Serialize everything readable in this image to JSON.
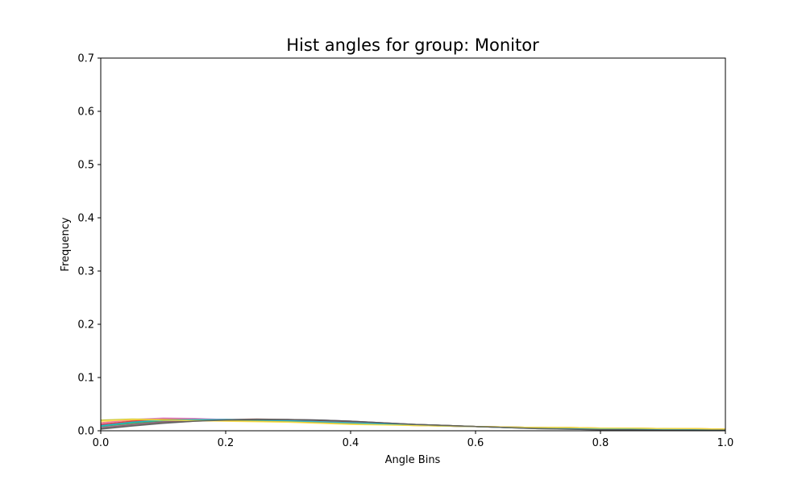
{
  "chart_data": {
    "type": "line",
    "title": "Hist angles for group: Monitor",
    "xlabel": "Angle Bins",
    "ylabel": "Frequency",
    "xlim": [
      0.0,
      1.0
    ],
    "ylim": [
      0.0,
      0.7
    ],
    "x_ticks": [
      0.0,
      0.2,
      0.4,
      0.6,
      0.8,
      1.0
    ],
    "x_tick_labels": [
      "0.0",
      "0.2",
      "0.4",
      "0.6",
      "0.8",
      "1.0"
    ],
    "y_ticks": [
      0.0,
      0.1,
      0.2,
      0.3,
      0.4,
      0.5,
      0.6,
      0.7
    ],
    "y_tick_labels": [
      "0.0",
      "0.1",
      "0.2",
      "0.3",
      "0.4",
      "0.5",
      "0.6",
      "0.7"
    ],
    "grid": false,
    "legend": false,
    "x": [
      0.0,
      0.05,
      0.1,
      0.15,
      0.2,
      0.25,
      0.3,
      0.35,
      0.4,
      0.45,
      0.5,
      0.55,
      0.6,
      0.65,
      0.7,
      0.75,
      0.8,
      0.85,
      0.9,
      0.95,
      1.0
    ],
    "series": [
      {
        "color": "#1f77b4",
        "values": [
          0.01,
          0.016,
          0.02,
          0.022,
          0.021,
          0.02,
          0.019,
          0.017,
          0.015,
          0.013,
          0.011,
          0.009,
          0.008,
          0.007,
          0.006,
          0.005,
          0.004,
          0.004,
          0.003,
          0.003,
          0.002
        ]
      },
      {
        "color": "#ff7f0e",
        "values": [
          0.015,
          0.02,
          0.021,
          0.02,
          0.019,
          0.018,
          0.017,
          0.016,
          0.014,
          0.012,
          0.01,
          0.009,
          0.008,
          0.007,
          0.006,
          0.006,
          0.005,
          0.005,
          0.004,
          0.004,
          0.003
        ]
      },
      {
        "color": "#2ca02c",
        "values": [
          0.008,
          0.014,
          0.018,
          0.02,
          0.021,
          0.02,
          0.019,
          0.018,
          0.016,
          0.014,
          0.012,
          0.01,
          0.008,
          0.007,
          0.006,
          0.005,
          0.005,
          0.004,
          0.004,
          0.003,
          0.002
        ]
      },
      {
        "color": "#d62728",
        "values": [
          0.012,
          0.018,
          0.022,
          0.022,
          0.021,
          0.021,
          0.02,
          0.018,
          0.016,
          0.013,
          0.011,
          0.009,
          0.008,
          0.006,
          0.005,
          0.004,
          0.004,
          0.003,
          0.003,
          0.002,
          0.002
        ]
      },
      {
        "color": "#9467bd",
        "values": [
          0.006,
          0.012,
          0.017,
          0.019,
          0.02,
          0.021,
          0.021,
          0.02,
          0.018,
          0.015,
          0.012,
          0.01,
          0.008,
          0.006,
          0.005,
          0.004,
          0.003,
          0.003,
          0.002,
          0.002,
          0.001
        ]
      },
      {
        "color": "#8c564b",
        "values": [
          0.005,
          0.011,
          0.016,
          0.019,
          0.021,
          0.022,
          0.021,
          0.019,
          0.017,
          0.014,
          0.012,
          0.01,
          0.008,
          0.006,
          0.005,
          0.004,
          0.003,
          0.003,
          0.002,
          0.002,
          0.001
        ]
      },
      {
        "color": "#e377c2",
        "values": [
          0.014,
          0.021,
          0.024,
          0.023,
          0.021,
          0.02,
          0.019,
          0.017,
          0.015,
          0.013,
          0.011,
          0.009,
          0.008,
          0.007,
          0.006,
          0.005,
          0.004,
          0.004,
          0.003,
          0.003,
          0.002
        ]
      },
      {
        "color": "#7f7f7f",
        "values": [
          0.004,
          0.01,
          0.015,
          0.018,
          0.02,
          0.021,
          0.021,
          0.02,
          0.018,
          0.015,
          0.012,
          0.01,
          0.008,
          0.006,
          0.004,
          0.003,
          0.002,
          0.002,
          0.001,
          0.001,
          0.001
        ]
      },
      {
        "color": "#bcbd22",
        "values": [
          0.02,
          0.022,
          0.021,
          0.02,
          0.019,
          0.018,
          0.017,
          0.015,
          0.013,
          0.012,
          0.01,
          0.009,
          0.008,
          0.007,
          0.006,
          0.006,
          0.005,
          0.005,
          0.004,
          0.004,
          0.003
        ]
      },
      {
        "color": "#17becf",
        "values": [
          0.009,
          0.016,
          0.02,
          0.021,
          0.021,
          0.02,
          0.019,
          0.017,
          0.015,
          0.013,
          0.011,
          0.009,
          0.008,
          0.006,
          0.005,
          0.004,
          0.004,
          0.003,
          0.003,
          0.002,
          0.002
        ]
      },
      {
        "color": "#ffdd44",
        "values": [
          0.018,
          0.021,
          0.02,
          0.019,
          0.018,
          0.017,
          0.016,
          0.014,
          0.012,
          0.011,
          0.01,
          0.009,
          0.008,
          0.007,
          0.006,
          0.006,
          0.005,
          0.005,
          0.004,
          0.004,
          0.003
        ]
      },
      {
        "color": "#555555",
        "values": [
          0.003,
          0.009,
          0.014,
          0.018,
          0.02,
          0.021,
          0.021,
          0.02,
          0.018,
          0.015,
          0.012,
          0.01,
          0.008,
          0.006,
          0.004,
          0.003,
          0.002,
          0.002,
          0.001,
          0.001,
          0.001
        ]
      }
    ]
  }
}
